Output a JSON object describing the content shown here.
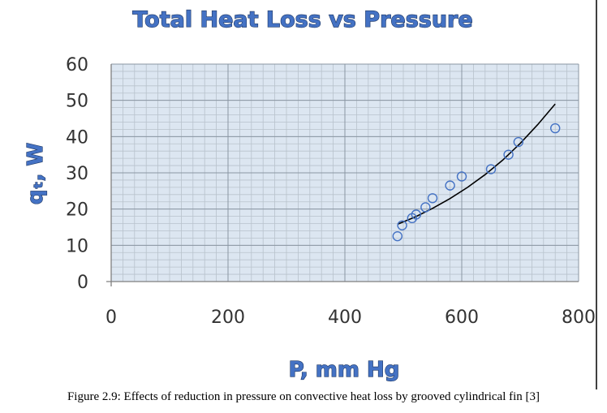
{
  "chart_data": {
    "type": "scatter",
    "title": "Total Heat Loss vs Pressure",
    "xlabel": "P, mm Hg",
    "ylabel": "qₜ, W",
    "xlim": [
      0,
      800
    ],
    "ylim": [
      0,
      60
    ],
    "x_ticks": [
      0,
      200,
      400,
      600,
      800
    ],
    "y_ticks": [
      0,
      10,
      20,
      30,
      40,
      50,
      60
    ],
    "grid": true,
    "legend": "none",
    "series": [
      {
        "type": "scatter",
        "marker": "open-circle",
        "color": "#4472c4",
        "points": [
          [
            490,
            12.5
          ],
          [
            498,
            15.5
          ],
          [
            515,
            17.5
          ],
          [
            522,
            18.5
          ],
          [
            538,
            20.5
          ],
          [
            550,
            23
          ],
          [
            580,
            26.5
          ],
          [
            600,
            29
          ],
          [
            650,
            31
          ],
          [
            680,
            35
          ],
          [
            697,
            38.5
          ],
          [
            760,
            42.3
          ]
        ]
      },
      {
        "type": "line",
        "role": "trendline",
        "color": "#000000",
        "points": [
          [
            490,
            15.8
          ],
          [
            520,
            17.8
          ],
          [
            550,
            20.2
          ],
          [
            580,
            22.9
          ],
          [
            610,
            26.0
          ],
          [
            640,
            29.5
          ],
          [
            670,
            33.5
          ],
          [
            700,
            38.1
          ],
          [
            730,
            43.3
          ],
          [
            760,
            49.0
          ]
        ]
      }
    ]
  },
  "caption": "Figure 2.9: Effects of reduction in pressure on convective heat loss by grooved cylindrical fin [3]"
}
